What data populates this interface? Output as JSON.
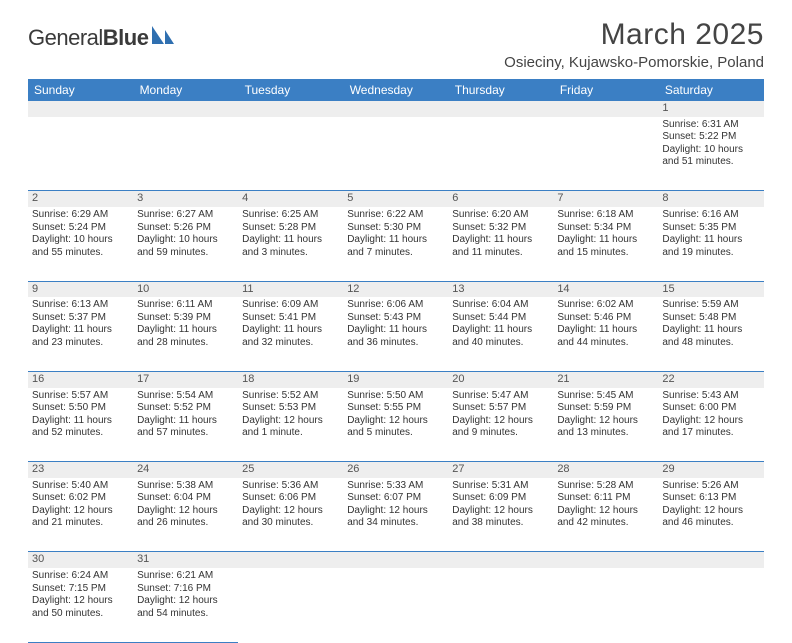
{
  "logo": {
    "brand_a": "General",
    "brand_b": "Blue"
  },
  "title": "March 2025",
  "location": "Osieciny, Kujawsko-Pomorskie, Poland",
  "colors": {
    "header_bg": "#3b7fc4",
    "header_text": "#ffffff",
    "grid_line": "#3b7fc4",
    "daynum_bg": "#eeeeee",
    "text": "#333333",
    "logo_accent": "#2f6fb0"
  },
  "day_headers": [
    "Sunday",
    "Monday",
    "Tuesday",
    "Wednesday",
    "Thursday",
    "Friday",
    "Saturday"
  ],
  "weeks": [
    [
      null,
      null,
      null,
      null,
      null,
      null,
      {
        "n": "1",
        "sr": "Sunrise: 6:31 AM",
        "ss": "Sunset: 5:22 PM",
        "d1": "Daylight: 10 hours",
        "d2": "and 51 minutes."
      }
    ],
    [
      {
        "n": "2",
        "sr": "Sunrise: 6:29 AM",
        "ss": "Sunset: 5:24 PM",
        "d1": "Daylight: 10 hours",
        "d2": "and 55 minutes."
      },
      {
        "n": "3",
        "sr": "Sunrise: 6:27 AM",
        "ss": "Sunset: 5:26 PM",
        "d1": "Daylight: 10 hours",
        "d2": "and 59 minutes."
      },
      {
        "n": "4",
        "sr": "Sunrise: 6:25 AM",
        "ss": "Sunset: 5:28 PM",
        "d1": "Daylight: 11 hours",
        "d2": "and 3 minutes."
      },
      {
        "n": "5",
        "sr": "Sunrise: 6:22 AM",
        "ss": "Sunset: 5:30 PM",
        "d1": "Daylight: 11 hours",
        "d2": "and 7 minutes."
      },
      {
        "n": "6",
        "sr": "Sunrise: 6:20 AM",
        "ss": "Sunset: 5:32 PM",
        "d1": "Daylight: 11 hours",
        "d2": "and 11 minutes."
      },
      {
        "n": "7",
        "sr": "Sunrise: 6:18 AM",
        "ss": "Sunset: 5:34 PM",
        "d1": "Daylight: 11 hours",
        "d2": "and 15 minutes."
      },
      {
        "n": "8",
        "sr": "Sunrise: 6:16 AM",
        "ss": "Sunset: 5:35 PM",
        "d1": "Daylight: 11 hours",
        "d2": "and 19 minutes."
      }
    ],
    [
      {
        "n": "9",
        "sr": "Sunrise: 6:13 AM",
        "ss": "Sunset: 5:37 PM",
        "d1": "Daylight: 11 hours",
        "d2": "and 23 minutes."
      },
      {
        "n": "10",
        "sr": "Sunrise: 6:11 AM",
        "ss": "Sunset: 5:39 PM",
        "d1": "Daylight: 11 hours",
        "d2": "and 28 minutes."
      },
      {
        "n": "11",
        "sr": "Sunrise: 6:09 AM",
        "ss": "Sunset: 5:41 PM",
        "d1": "Daylight: 11 hours",
        "d2": "and 32 minutes."
      },
      {
        "n": "12",
        "sr": "Sunrise: 6:06 AM",
        "ss": "Sunset: 5:43 PM",
        "d1": "Daylight: 11 hours",
        "d2": "and 36 minutes."
      },
      {
        "n": "13",
        "sr": "Sunrise: 6:04 AM",
        "ss": "Sunset: 5:44 PM",
        "d1": "Daylight: 11 hours",
        "d2": "and 40 minutes."
      },
      {
        "n": "14",
        "sr": "Sunrise: 6:02 AM",
        "ss": "Sunset: 5:46 PM",
        "d1": "Daylight: 11 hours",
        "d2": "and 44 minutes."
      },
      {
        "n": "15",
        "sr": "Sunrise: 5:59 AM",
        "ss": "Sunset: 5:48 PM",
        "d1": "Daylight: 11 hours",
        "d2": "and 48 minutes."
      }
    ],
    [
      {
        "n": "16",
        "sr": "Sunrise: 5:57 AM",
        "ss": "Sunset: 5:50 PM",
        "d1": "Daylight: 11 hours",
        "d2": "and 52 minutes."
      },
      {
        "n": "17",
        "sr": "Sunrise: 5:54 AM",
        "ss": "Sunset: 5:52 PM",
        "d1": "Daylight: 11 hours",
        "d2": "and 57 minutes."
      },
      {
        "n": "18",
        "sr": "Sunrise: 5:52 AM",
        "ss": "Sunset: 5:53 PM",
        "d1": "Daylight: 12 hours",
        "d2": "and 1 minute."
      },
      {
        "n": "19",
        "sr": "Sunrise: 5:50 AM",
        "ss": "Sunset: 5:55 PM",
        "d1": "Daylight: 12 hours",
        "d2": "and 5 minutes."
      },
      {
        "n": "20",
        "sr": "Sunrise: 5:47 AM",
        "ss": "Sunset: 5:57 PM",
        "d1": "Daylight: 12 hours",
        "d2": "and 9 minutes."
      },
      {
        "n": "21",
        "sr": "Sunrise: 5:45 AM",
        "ss": "Sunset: 5:59 PM",
        "d1": "Daylight: 12 hours",
        "d2": "and 13 minutes."
      },
      {
        "n": "22",
        "sr": "Sunrise: 5:43 AM",
        "ss": "Sunset: 6:00 PM",
        "d1": "Daylight: 12 hours",
        "d2": "and 17 minutes."
      }
    ],
    [
      {
        "n": "23",
        "sr": "Sunrise: 5:40 AM",
        "ss": "Sunset: 6:02 PM",
        "d1": "Daylight: 12 hours",
        "d2": "and 21 minutes."
      },
      {
        "n": "24",
        "sr": "Sunrise: 5:38 AM",
        "ss": "Sunset: 6:04 PM",
        "d1": "Daylight: 12 hours",
        "d2": "and 26 minutes."
      },
      {
        "n": "25",
        "sr": "Sunrise: 5:36 AM",
        "ss": "Sunset: 6:06 PM",
        "d1": "Daylight: 12 hours",
        "d2": "and 30 minutes."
      },
      {
        "n": "26",
        "sr": "Sunrise: 5:33 AM",
        "ss": "Sunset: 6:07 PM",
        "d1": "Daylight: 12 hours",
        "d2": "and 34 minutes."
      },
      {
        "n": "27",
        "sr": "Sunrise: 5:31 AM",
        "ss": "Sunset: 6:09 PM",
        "d1": "Daylight: 12 hours",
        "d2": "and 38 minutes."
      },
      {
        "n": "28",
        "sr": "Sunrise: 5:28 AM",
        "ss": "Sunset: 6:11 PM",
        "d1": "Daylight: 12 hours",
        "d2": "and 42 minutes."
      },
      {
        "n": "29",
        "sr": "Sunrise: 5:26 AM",
        "ss": "Sunset: 6:13 PM",
        "d1": "Daylight: 12 hours",
        "d2": "and 46 minutes."
      }
    ],
    [
      {
        "n": "30",
        "sr": "Sunrise: 6:24 AM",
        "ss": "Sunset: 7:15 PM",
        "d1": "Daylight: 12 hours",
        "d2": "and 50 minutes."
      },
      {
        "n": "31",
        "sr": "Sunrise: 6:21 AM",
        "ss": "Sunset: 7:16 PM",
        "d1": "Daylight: 12 hours",
        "d2": "and 54 minutes."
      },
      null,
      null,
      null,
      null,
      null
    ]
  ]
}
